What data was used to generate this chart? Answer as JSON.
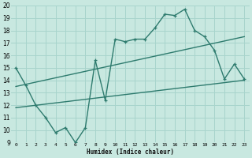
{
  "bg_color": "#c8e8e0",
  "grid_color": "#a8d4cc",
  "line_color": "#2e7b6e",
  "xlabel": "Humidex (Indice chaleur)",
  "xlim": [
    -0.5,
    23.5
  ],
  "ylim": [
    9,
    20
  ],
  "xticks": [
    0,
    1,
    2,
    3,
    4,
    5,
    6,
    7,
    8,
    9,
    10,
    11,
    12,
    13,
    14,
    15,
    16,
    17,
    18,
    19,
    20,
    21,
    22,
    23
  ],
  "yticks": [
    9,
    10,
    11,
    12,
    13,
    14,
    15,
    16,
    17,
    18,
    19,
    20
  ],
  "line1_x": [
    0,
    1,
    2,
    3,
    4,
    5,
    6,
    7,
    8,
    9,
    10,
    11,
    12,
    13,
    14,
    15,
    16,
    17,
    18,
    19,
    20,
    21,
    22,
    23
  ],
  "line1_y": [
    15.0,
    13.6,
    12.0,
    11.0,
    9.8,
    10.2,
    9.0,
    10.2,
    15.6,
    12.4,
    17.3,
    17.1,
    17.3,
    17.3,
    18.2,
    19.3,
    19.2,
    19.7,
    18.0,
    17.5,
    16.4,
    14.1,
    15.3,
    14.1
  ],
  "line2_x": [
    0,
    23
  ],
  "line2_y": [
    13.5,
    17.5
  ],
  "line3_x": [
    0,
    23
  ],
  "line3_y": [
    11.8,
    14.0
  ]
}
